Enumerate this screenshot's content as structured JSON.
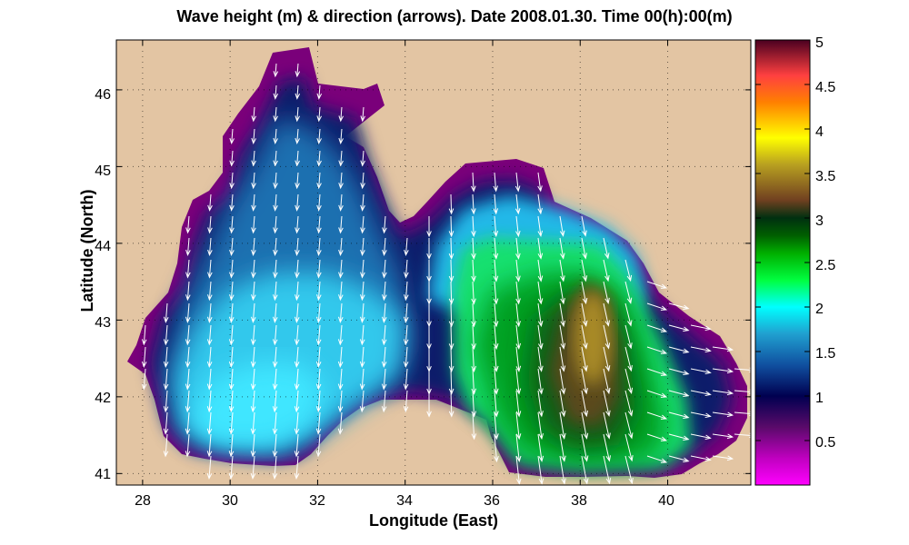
{
  "title": "Wave height (m) & direction (arrows). Date 2008.01.30. Time 00(h):00(m)",
  "xlabel": "Longitude (East)",
  "ylabel": "Latitude (North)",
  "x_ticks": [
    "28",
    "30",
    "32",
    "34",
    "36",
    "38",
    "40"
  ],
  "y_ticks": [
    "41",
    "42",
    "43",
    "44",
    "45",
    "46"
  ],
  "colorbar_ticks": [
    "0.5",
    "1",
    "1.5",
    "2",
    "2.5",
    "3",
    "3.5",
    "4",
    "4.5",
    "5"
  ],
  "colors": {
    "land": "#e3c5a3",
    "colormap": [
      "#ff00ff",
      "#b000b0",
      "#5a0a6a",
      "#000050",
      "#1050a0",
      "#20a0d0",
      "#00ffff",
      "#00ff40",
      "#00b000",
      "#006000",
      "#003010",
      "#704020",
      "#b8a020",
      "#ffff00",
      "#ff8000",
      "#ff4040",
      "#a02040",
      "#4a0020"
    ]
  },
  "chart_data": {
    "type": "heatmap",
    "title": "Wave height (m) & direction (arrows). Date 2008.01.30. Time 00(h):00(m)",
    "xlabel": "Longitude (East)",
    "ylabel": "Latitude (North)",
    "xlim": [
      27.4,
      41.9
    ],
    "ylim": [
      40.85,
      46.65
    ],
    "colorbar_range": [
      0,
      5
    ],
    "colorbar_label_values": [
      0.5,
      1,
      1.5,
      2,
      2.5,
      3,
      3.5,
      4,
      4.5,
      5
    ],
    "grid": true,
    "max_wave_height_region": {
      "lon": 38.4,
      "lat": 42.9,
      "value": 3.2
    }
  }
}
